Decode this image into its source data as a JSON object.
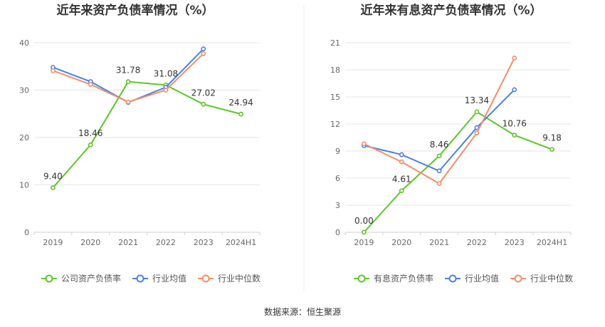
{
  "chart_data": [
    {
      "type": "line",
      "title": "近年来资产负债率情况（%）",
      "categories": [
        "2019",
        "2020",
        "2021",
        "2022",
        "2023",
        "2024H1"
      ],
      "ylim": [
        0,
        40
      ],
      "yticks": [
        "0",
        "10",
        "20",
        "30",
        "40"
      ],
      "grid": true,
      "legend_position": "bottom",
      "series": [
        {
          "name": "公司资产负债率",
          "color": "#5ec52a",
          "values": [
            9.4,
            18.46,
            31.78,
            31.08,
            27.02,
            24.94
          ],
          "labels": [
            "9.40",
            "18.46",
            "31.78",
            "31.08",
            "27.02",
            "24.94"
          ]
        },
        {
          "name": "行业均值",
          "color": "#4a80e0",
          "values": [
            34.8,
            31.8,
            27.4,
            30.6,
            38.7,
            null
          ]
        },
        {
          "name": "行业中位数",
          "color": "#f28e6a",
          "values": [
            34.1,
            31.2,
            27.5,
            30.0,
            37.7,
            null
          ]
        }
      ]
    },
    {
      "type": "line",
      "title": "近年来有息资产负债率情况（%）",
      "categories": [
        "2019",
        "2020",
        "2021",
        "2022",
        "2023",
        "2024H1"
      ],
      "ylim": [
        0,
        21
      ],
      "yticks": [
        "0",
        "3",
        "6",
        "9",
        "12",
        "15",
        "18",
        "21"
      ],
      "grid": true,
      "legend_position": "bottom",
      "series": [
        {
          "name": "有息资产负债率",
          "color": "#5ec52a",
          "values": [
            0.0,
            4.61,
            8.46,
            13.34,
            10.76,
            9.18
          ],
          "labels": [
            "0.00",
            "4.61",
            "8.46",
            "13.34",
            "10.76",
            "9.18"
          ]
        },
        {
          "name": "行业均值",
          "color": "#4a80e0",
          "values": [
            9.6,
            8.6,
            6.8,
            11.6,
            15.8,
            null
          ]
        },
        {
          "name": "行业中位数",
          "color": "#f28e6a",
          "values": [
            9.8,
            7.8,
            5.4,
            11.0,
            19.3,
            null
          ]
        }
      ]
    }
  ],
  "footer": "数据来源：恒生聚源"
}
